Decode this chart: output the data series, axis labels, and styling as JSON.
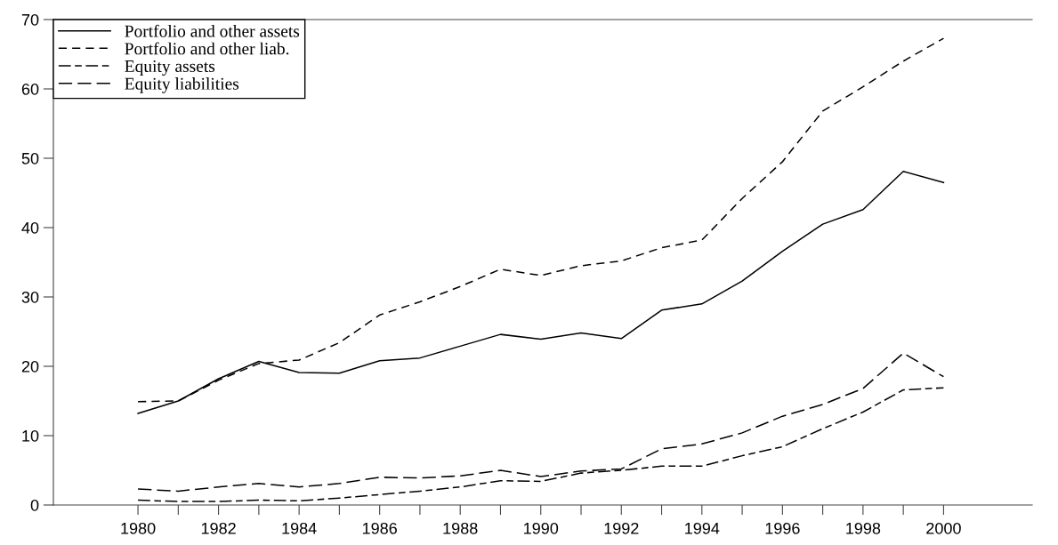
{
  "chart_data": {
    "type": "line",
    "x": [
      1980,
      1981,
      1982,
      1983,
      1984,
      1985,
      1986,
      1987,
      1988,
      1989,
      1990,
      1991,
      1992,
      1993,
      1994,
      1995,
      1996,
      1997,
      1998,
      1999,
      2000
    ],
    "series": [
      {
        "name": "Portfolio and other assets",
        "color": "#000000",
        "line_style": "solid",
        "values": [
          13.2,
          15.0,
          18.2,
          20.7,
          19.1,
          19.0,
          20.8,
          21.2,
          22.9,
          24.6,
          23.9,
          24.8,
          24.0,
          28.1,
          29.0,
          32.3,
          36.6,
          40.5,
          42.6,
          48.1,
          46.5
        ]
      },
      {
        "name": "Portfolio and other liab.",
        "color": "#000000",
        "line_style": "dashed",
        "values": [
          14.9,
          15.0,
          18.0,
          20.4,
          20.9,
          23.4,
          27.4,
          29.3,
          31.5,
          34.0,
          33.1,
          34.5,
          35.2,
          37.1,
          38.2,
          44.2,
          49.5,
          56.8,
          60.3,
          64.0,
          67.3
        ]
      },
      {
        "name": "Equity assets",
        "color": "#000000",
        "line_style": "dashed",
        "values": [
          0.7,
          0.5,
          0.5,
          0.7,
          0.6,
          1.0,
          1.5,
          2.0,
          2.6,
          3.5,
          3.4,
          4.6,
          5.0,
          5.6,
          5.6,
          7.1,
          8.4,
          11.0,
          13.4,
          16.6,
          16.9
        ]
      },
      {
        "name": "Equity liabilities",
        "color": "#000000",
        "line_style": "dashed",
        "values": [
          2.3,
          2.0,
          2.6,
          3.1,
          2.6,
          3.1,
          4.0,
          3.9,
          4.2,
          5.0,
          4.1,
          4.9,
          5.2,
          8.1,
          8.8,
          10.4,
          12.8,
          14.5,
          16.8,
          21.9,
          18.5
        ]
      }
    ],
    "xlim": [
      1977.9,
      2002.2
    ],
    "xticks": [
      {
        "value": 1980,
        "label": "1980"
      },
      {
        "value": 1981,
        "label": null
      },
      {
        "value": 1982,
        "label": "1982"
      },
      {
        "value": 1983,
        "label": null
      },
      {
        "value": 1984,
        "label": "1984"
      },
      {
        "value": 1985,
        "label": null
      },
      {
        "value": 1986,
        "label": "1986"
      },
      {
        "value": 1987,
        "label": null
      },
      {
        "value": 1988,
        "label": "1988"
      },
      {
        "value": 1989,
        "label": null
      },
      {
        "value": 1990,
        "label": "1990"
      },
      {
        "value": 1991,
        "label": null
      },
      {
        "value": 1992,
        "label": "1992"
      },
      {
        "value": 1993,
        "label": null
      },
      {
        "value": 1994,
        "label": "1994"
      },
      {
        "value": 1995,
        "label": null
      },
      {
        "value": 1996,
        "label": "1996"
      },
      {
        "value": 1997,
        "label": null
      },
      {
        "value": 1998,
        "label": "1998"
      },
      {
        "value": 1999,
        "label": null
      },
      {
        "value": 2000,
        "label": "2000"
      }
    ],
    "ylim": [
      0,
      70
    ],
    "yticks": [
      0,
      10,
      20,
      30,
      40,
      50,
      60,
      70
    ],
    "grid": false,
    "legend": "top left",
    "marker": "none"
  }
}
